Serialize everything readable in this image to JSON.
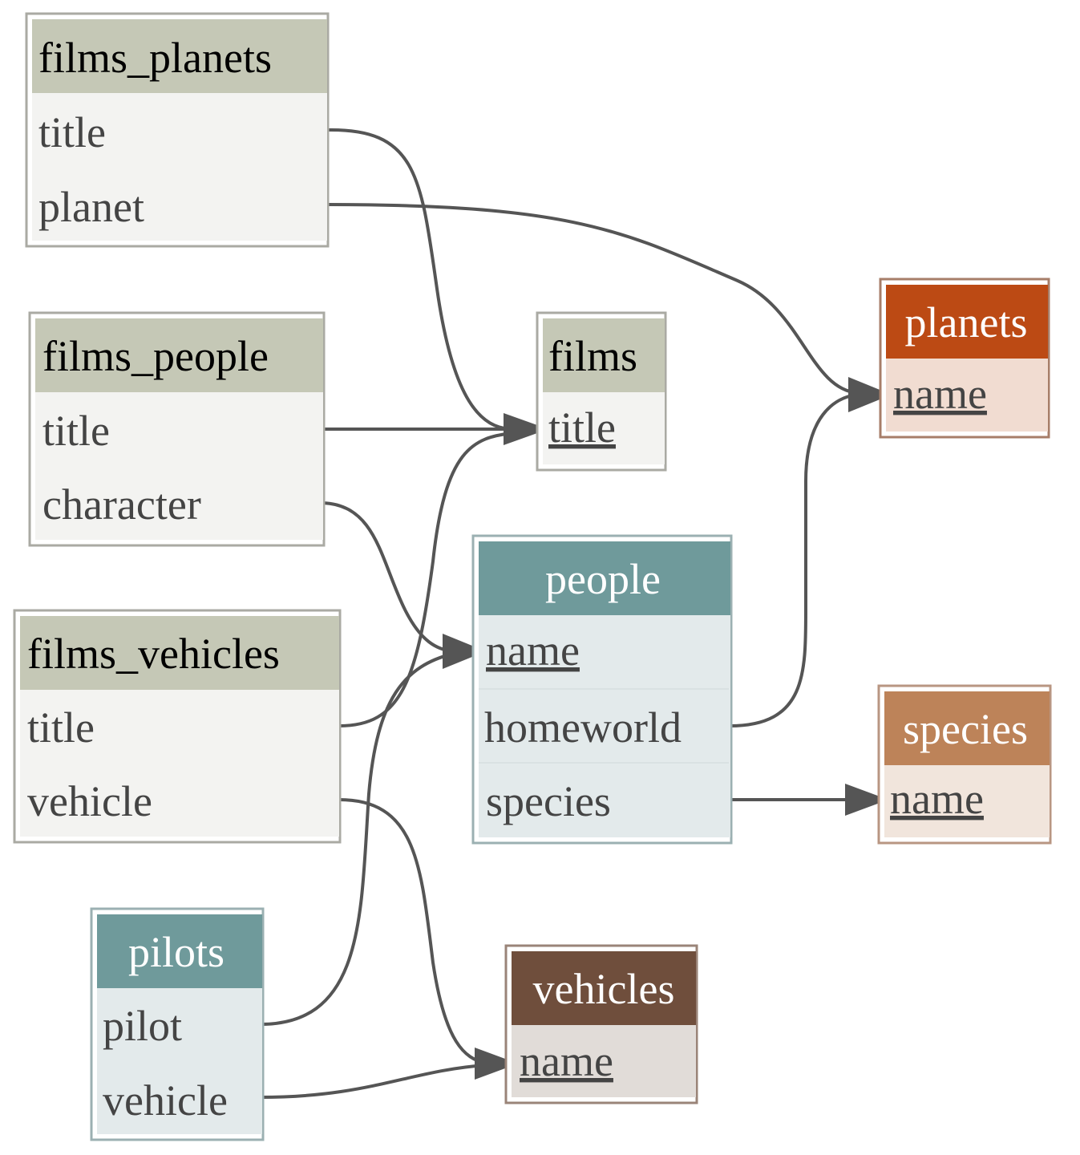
{
  "colors": {
    "edge": "#555555",
    "join_header": "#c5c8b6",
    "join_body": "#f3f3f1",
    "join_border": "#aaaaa3",
    "entity_header_teal": "#6f9a9b",
    "entity_body_teal": "#e3eaeb",
    "planets_header": "#bc4a14",
    "planets_body": "#f1dcd1",
    "species_header": "#bd8359",
    "species_body": "#f1e5dc",
    "vehicles_header": "#6f4e3c",
    "vehicles_body": "#e1dcd8"
  },
  "tables": {
    "films_planets": {
      "title": "films_planets",
      "fields": [
        "title",
        "planet"
      ]
    },
    "films_people": {
      "title": "films_people",
      "fields": [
        "title",
        "character"
      ]
    },
    "films_vehicles": {
      "title": "films_vehicles",
      "fields": [
        "title",
        "vehicle"
      ]
    },
    "pilots": {
      "title": "pilots",
      "fields": [
        "pilot",
        "vehicle"
      ]
    },
    "films": {
      "title": "films",
      "fields": [
        "title"
      ]
    },
    "people": {
      "title": "people",
      "fields": [
        "name",
        "homeworld",
        "species"
      ]
    },
    "planets": {
      "title": "planets",
      "fields": [
        "name"
      ]
    },
    "species": {
      "title": "species",
      "fields": [
        "name"
      ]
    },
    "vehicles": {
      "title": "vehicles",
      "fields": [
        "name"
      ]
    }
  },
  "relations": [
    {
      "from": "films_planets.title",
      "to": "films.title"
    },
    {
      "from": "films_planets.planet",
      "to": "planets.name"
    },
    {
      "from": "films_people.title",
      "to": "films.title"
    },
    {
      "from": "films_people.character",
      "to": "people.name"
    },
    {
      "from": "films_vehicles.title",
      "to": "films.title"
    },
    {
      "from": "films_vehicles.vehicle",
      "to": "vehicles.name"
    },
    {
      "from": "pilots.pilot",
      "to": "people.name"
    },
    {
      "from": "pilots.vehicle",
      "to": "vehicles.name"
    },
    {
      "from": "people.homeworld",
      "to": "planets.name"
    },
    {
      "from": "people.species",
      "to": "species.name"
    }
  ]
}
